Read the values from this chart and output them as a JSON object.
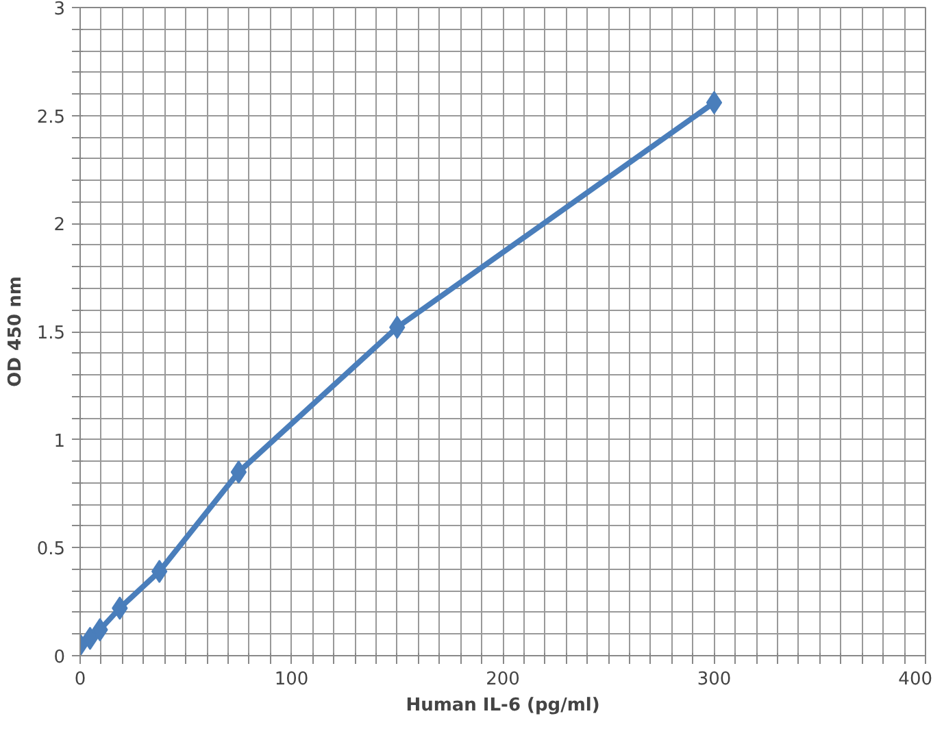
{
  "chart_data": {
    "type": "line",
    "xlabel": "Human IL-6 (pg/ml)",
    "ylabel": "OD 450 nm",
    "x": [
      0,
      4.69,
      9.38,
      18.75,
      37.5,
      75,
      150,
      300
    ],
    "series": [
      {
        "color": "#4a7ebb",
        "values": [
          0.05,
          0.08,
          0.12,
          0.22,
          0.39,
          0.85,
          1.52,
          2.56
        ]
      }
    ],
    "xlim": [
      0,
      400
    ],
    "ylim": [
      0,
      3
    ],
    "xticks": [
      0,
      {
        "value": 10,
        "label": null
      },
      {
        "value": 20,
        "label": null
      },
      {
        "value": 30,
        "label": null
      },
      {
        "value": 40,
        "label": null
      },
      {
        "value": 50,
        "label": null
      },
      {
        "value": 60,
        "label": null
      },
      {
        "value": 70,
        "label": null
      },
      {
        "value": 80,
        "label": null
      },
      {
        "value": 90,
        "label": null
      },
      100,
      {
        "value": 110,
        "label": null
      },
      {
        "value": 120,
        "label": null
      },
      {
        "value": 130,
        "label": null
      },
      {
        "value": 140,
        "label": null
      },
      {
        "value": 150,
        "label": null
      },
      {
        "value": 160,
        "label": null
      },
      {
        "value": 170,
        "label": null
      },
      {
        "value": 180,
        "label": null
      },
      {
        "value": 190,
        "label": null
      },
      200,
      {
        "value": 210,
        "label": null
      },
      {
        "value": 220,
        "label": null
      },
      {
        "value": 230,
        "label": null
      },
      {
        "value": 240,
        "label": null
      },
      {
        "value": 250,
        "label": null
      },
      {
        "value": 260,
        "label": null
      },
      {
        "value": 270,
        "label": null
      },
      {
        "value": 280,
        "label": null
      },
      {
        "value": 290,
        "label": null
      },
      300,
      {
        "value": 310,
        "label": null
      },
      {
        "value": 320,
        "label": null
      },
      {
        "value": 330,
        "label": null
      },
      {
        "value": 340,
        "label": null
      },
      {
        "value": 350,
        "label": null
      },
      {
        "value": 360,
        "label": null
      },
      {
        "value": 370,
        "label": null
      },
      {
        "value": 380,
        "label": null
      },
      {
        "value": 390,
        "label": null
      },
      400
    ],
    "yticks": [
      0,
      {
        "value": 0.1,
        "label": null
      },
      {
        "value": 0.2,
        "label": null
      },
      {
        "value": 0.3,
        "label": null
      },
      {
        "value": 0.4,
        "label": null
      },
      0.5,
      {
        "value": 0.6,
        "label": null
      },
      {
        "value": 0.7,
        "label": null
      },
      {
        "value": 0.8,
        "label": null
      },
      {
        "value": 0.9,
        "label": null
      },
      1,
      {
        "value": 1.1,
        "label": null
      },
      {
        "value": 1.2,
        "label": null
      },
      {
        "value": 1.3,
        "label": null
      },
      {
        "value": 1.4,
        "label": null
      },
      1.5,
      {
        "value": 1.6,
        "label": null
      },
      {
        "value": 1.7,
        "label": null
      },
      {
        "value": 1.8,
        "label": null
      },
      {
        "value": 1.9,
        "label": null
      },
      2,
      {
        "value": 2.1,
        "label": null
      },
      {
        "value": 2.2,
        "label": null
      },
      {
        "value": 2.3,
        "label": null
      },
      {
        "value": 2.4,
        "label": null
      },
      2.5,
      {
        "value": 2.6,
        "label": null
      },
      {
        "value": 2.7,
        "label": null
      },
      {
        "value": 2.8,
        "label": null
      },
      {
        "value": 2.9,
        "label": null
      },
      3
    ],
    "grid": true,
    "marker": "diamond",
    "line_style": "solid"
  }
}
